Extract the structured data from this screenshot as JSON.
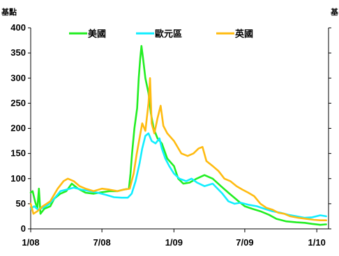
{
  "chart_data": {
    "type": "line",
    "ylabel_left": "基點",
    "ylabel_right": "基",
    "ylim": [
      0,
      400
    ],
    "yticks": [
      0,
      50,
      100,
      150,
      200,
      250,
      300,
      350,
      400
    ],
    "xlim": [
      "2008-01-01",
      "2010-01-31"
    ],
    "xticks": [
      {
        "label": "1/08",
        "date": "2008-01-01"
      },
      {
        "label": "7/08",
        "date": "2008-07-01"
      },
      {
        "label": "1/09",
        "date": "2009-01-01"
      },
      {
        "label": "7/09",
        "date": "2009-07-01"
      },
      {
        "label": "1/10",
        "date": "2010-01-01"
      }
    ],
    "legend_position": "top",
    "grid": false,
    "series": [
      {
        "name": "美國",
        "color": "#22ee22",
        "points": [
          [
            "2008-01-01",
            72
          ],
          [
            "2008-01-06",
            75
          ],
          [
            "2008-01-12",
            55
          ],
          [
            "2008-01-18",
            40
          ],
          [
            "2008-01-22",
            80
          ],
          [
            "2008-01-26",
            30
          ],
          [
            "2008-02-05",
            40
          ],
          [
            "2008-02-20",
            45
          ],
          [
            "2008-03-01",
            60
          ],
          [
            "2008-03-17",
            70
          ],
          [
            "2008-04-01",
            75
          ],
          [
            "2008-04-15",
            90
          ],
          [
            "2008-05-01",
            80
          ],
          [
            "2008-05-20",
            72
          ],
          [
            "2008-06-10",
            70
          ],
          [
            "2008-07-01",
            73
          ],
          [
            "2008-07-20",
            75
          ],
          [
            "2008-08-10",
            75
          ],
          [
            "2008-08-25",
            78
          ],
          [
            "2008-09-08",
            80
          ],
          [
            "2008-09-12",
            110
          ],
          [
            "2008-09-16",
            150
          ],
          [
            "2008-09-22",
            200
          ],
          [
            "2008-09-29",
            240
          ],
          [
            "2008-10-03",
            300
          ],
          [
            "2008-10-07",
            340
          ],
          [
            "2008-10-10",
            364
          ],
          [
            "2008-10-14",
            340
          ],
          [
            "2008-10-20",
            300
          ],
          [
            "2008-10-28",
            270
          ],
          [
            "2008-11-03",
            230
          ],
          [
            "2008-11-10",
            200
          ],
          [
            "2008-11-20",
            180
          ],
          [
            "2008-12-01",
            170
          ],
          [
            "2008-12-15",
            140
          ],
          [
            "2009-01-01",
            125
          ],
          [
            "2009-01-12",
            100
          ],
          [
            "2009-01-25",
            90
          ],
          [
            "2009-02-10",
            92
          ],
          [
            "2009-02-28",
            100
          ],
          [
            "2009-03-20",
            107
          ],
          [
            "2009-04-10",
            100
          ],
          [
            "2009-05-01",
            85
          ],
          [
            "2009-05-20",
            72
          ],
          [
            "2009-06-15",
            55
          ],
          [
            "2009-07-01",
            45
          ],
          [
            "2009-07-20",
            40
          ],
          [
            "2009-08-10",
            35
          ],
          [
            "2009-09-01",
            28
          ],
          [
            "2009-09-20",
            20
          ],
          [
            "2009-10-15",
            15
          ],
          [
            "2009-11-10",
            13
          ],
          [
            "2009-12-01",
            12
          ],
          [
            "2009-12-20",
            10
          ],
          [
            "2010-01-10",
            8
          ],
          [
            "2010-01-25",
            9
          ]
        ]
      },
      {
        "name": "歐元區",
        "color": "#11eeff",
        "points": [
          [
            "2008-01-01",
            40
          ],
          [
            "2008-01-10",
            45
          ],
          [
            "2008-01-20",
            38
          ],
          [
            "2008-02-01",
            42
          ],
          [
            "2008-02-15",
            48
          ],
          [
            "2008-03-01",
            60
          ],
          [
            "2008-03-17",
            75
          ],
          [
            "2008-04-01",
            78
          ],
          [
            "2008-04-20",
            82
          ],
          [
            "2008-05-10",
            78
          ],
          [
            "2008-06-01",
            75
          ],
          [
            "2008-06-20",
            72
          ],
          [
            "2008-07-10",
            68
          ],
          [
            "2008-08-01",
            63
          ],
          [
            "2008-08-20",
            62
          ],
          [
            "2008-09-05",
            62
          ],
          [
            "2008-09-15",
            70
          ],
          [
            "2008-09-25",
            95
          ],
          [
            "2008-10-05",
            130
          ],
          [
            "2008-10-12",
            160
          ],
          [
            "2008-10-20",
            185
          ],
          [
            "2008-10-28",
            190
          ],
          [
            "2008-11-05",
            175
          ],
          [
            "2008-11-15",
            170
          ],
          [
            "2008-11-25",
            180
          ],
          [
            "2008-12-01",
            160
          ],
          [
            "2008-12-10",
            140
          ],
          [
            "2008-12-20",
            125
          ],
          [
            "2009-01-01",
            110
          ],
          [
            "2009-01-15",
            100
          ],
          [
            "2009-02-01",
            95
          ],
          [
            "2009-02-15",
            100
          ],
          [
            "2009-03-01",
            92
          ],
          [
            "2009-03-20",
            85
          ],
          [
            "2009-04-10",
            90
          ],
          [
            "2009-04-25",
            78
          ],
          [
            "2009-05-05",
            70
          ],
          [
            "2009-05-20",
            55
          ],
          [
            "2009-06-05",
            50
          ],
          [
            "2009-06-20",
            52
          ],
          [
            "2009-07-10",
            48
          ],
          [
            "2009-08-01",
            45
          ],
          [
            "2009-08-20",
            40
          ],
          [
            "2009-09-10",
            35
          ],
          [
            "2009-10-01",
            32
          ],
          [
            "2009-10-20",
            28
          ],
          [
            "2009-11-10",
            25
          ],
          [
            "2009-12-01",
            22
          ],
          [
            "2009-12-20",
            23
          ],
          [
            "2010-01-10",
            27
          ],
          [
            "2010-01-25",
            25
          ]
        ]
      },
      {
        "name": "英國",
        "color": "#ffbb11",
        "points": [
          [
            "2008-01-01",
            50
          ],
          [
            "2008-01-08",
            30
          ],
          [
            "2008-01-18",
            35
          ],
          [
            "2008-02-01",
            45
          ],
          [
            "2008-02-20",
            55
          ],
          [
            "2008-03-10",
            80
          ],
          [
            "2008-03-25",
            95
          ],
          [
            "2008-04-05",
            100
          ],
          [
            "2008-04-20",
            95
          ],
          [
            "2008-05-05",
            85
          ],
          [
            "2008-05-20",
            80
          ],
          [
            "2008-06-10",
            75
          ],
          [
            "2008-07-01",
            80
          ],
          [
            "2008-07-20",
            78
          ],
          [
            "2008-08-10",
            75
          ],
          [
            "2008-08-25",
            78
          ],
          [
            "2008-09-10",
            80
          ],
          [
            "2008-09-20",
            110
          ],
          [
            "2008-09-28",
            150
          ],
          [
            "2008-10-05",
            180
          ],
          [
            "2008-10-12",
            210
          ],
          [
            "2008-10-20",
            195
          ],
          [
            "2008-10-28",
            250
          ],
          [
            "2008-11-01",
            300
          ],
          [
            "2008-11-05",
            210
          ],
          [
            "2008-11-12",
            190
          ],
          [
            "2008-11-20",
            220
          ],
          [
            "2008-11-28",
            245
          ],
          [
            "2008-12-05",
            205
          ],
          [
            "2008-12-15",
            190
          ],
          [
            "2009-01-01",
            175
          ],
          [
            "2009-01-20",
            150
          ],
          [
            "2009-02-05",
            145
          ],
          [
            "2009-02-20",
            150
          ],
          [
            "2009-03-05",
            160
          ],
          [
            "2009-03-15",
            163
          ],
          [
            "2009-03-25",
            135
          ],
          [
            "2009-04-10",
            125
          ],
          [
            "2009-04-25",
            115
          ],
          [
            "2009-05-10",
            100
          ],
          [
            "2009-05-25",
            95
          ],
          [
            "2009-06-10",
            85
          ],
          [
            "2009-06-25",
            78
          ],
          [
            "2009-07-10",
            72
          ],
          [
            "2009-07-25",
            65
          ],
          [
            "2009-08-10",
            50
          ],
          [
            "2009-08-25",
            42
          ],
          [
            "2009-09-10",
            38
          ],
          [
            "2009-09-25",
            32
          ],
          [
            "2009-10-10",
            30
          ],
          [
            "2009-10-25",
            25
          ],
          [
            "2009-11-15",
            22
          ],
          [
            "2009-12-05",
            20
          ],
          [
            "2009-12-25",
            18
          ],
          [
            "2010-01-10",
            17
          ],
          [
            "2010-01-25",
            17
          ]
        ]
      }
    ]
  }
}
